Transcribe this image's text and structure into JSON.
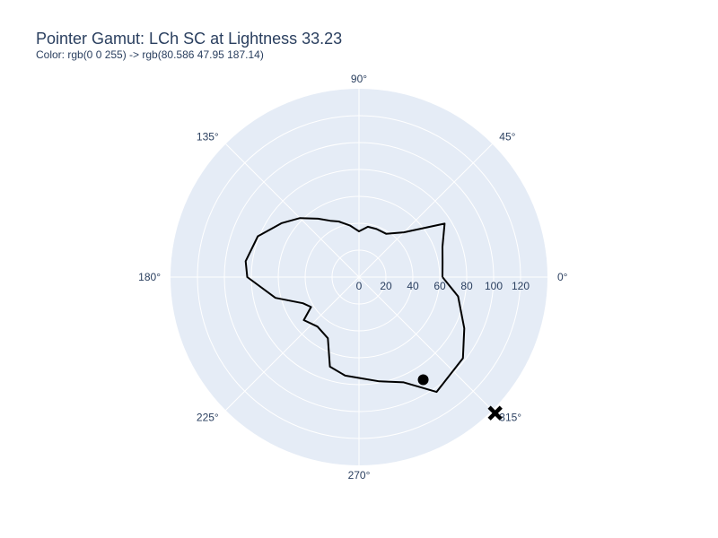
{
  "colors": {
    "polar_background": "#e5ecf6",
    "grid": "#ffffff",
    "text": "#2a3f5f",
    "trace": "#000000"
  },
  "chart_data": {
    "type": "scatter",
    "subtype": "polar",
    "title": "Pointer Gamut: LCh SC at Lightness 33.23",
    "subtitle": "Color: rgb(0 0 255) -> rgb(80.586 47.95 187.14)",
    "radial_axis": {
      "range": [
        0,
        140
      ],
      "ticks": [
        0,
        20,
        40,
        60,
        80,
        100,
        120
      ],
      "tick_angle_deg": 0
    },
    "angular_axis": {
      "ticks_deg": [
        0,
        45,
        90,
        135,
        180,
        225,
        270,
        315
      ],
      "tick_labels": [
        "0°",
        "45°",
        "90°",
        "135°",
        "180°",
        "225°",
        "270°",
        "315°"
      ]
    },
    "grid": true,
    "series": [
      {
        "mode": "lines",
        "closed": true,
        "points": [
          {
            "theta": 0,
            "r": 62
          },
          {
            "theta": 10,
            "r": 63
          },
          {
            "theta": 20,
            "r": 66
          },
          {
            "theta": 32,
            "r": 75
          },
          {
            "theta": 45,
            "r": 47
          },
          {
            "theta": 58,
            "r": 38
          },
          {
            "theta": 70,
            "r": 38
          },
          {
            "theta": 80,
            "r": 38
          },
          {
            "theta": 90,
            "r": 34
          },
          {
            "theta": 100,
            "r": 39
          },
          {
            "theta": 110,
            "r": 44
          },
          {
            "theta": 117,
            "r": 47
          },
          {
            "theta": 125,
            "r": 53
          },
          {
            "theta": 135,
            "r": 62
          },
          {
            "theta": 145,
            "r": 70
          },
          {
            "theta": 158,
            "r": 81
          },
          {
            "theta": 172,
            "r": 85
          },
          {
            "theta": 180,
            "r": 83
          },
          {
            "theta": 194,
            "r": 64
          },
          {
            "theta": 205,
            "r": 46
          },
          {
            "theta": 212,
            "r": 42
          },
          {
            "theta": 218,
            "r": 52
          },
          {
            "theta": 230,
            "r": 48
          },
          {
            "theta": 243,
            "r": 51
          },
          {
            "theta": 252,
            "r": 70
          },
          {
            "theta": 262,
            "r": 74
          },
          {
            "theta": 270,
            "r": 75
          },
          {
            "theta": 281,
            "r": 79
          },
          {
            "theta": 293,
            "r": 85
          },
          {
            "theta": 304,
            "r": 103
          },
          {
            "theta": 322,
            "r": 98
          },
          {
            "theta": 334,
            "r": 87
          },
          {
            "theta": 349,
            "r": 75
          },
          {
            "theta": 360,
            "r": 62
          }
        ]
      },
      {
        "mode": "markers",
        "marker": "circle",
        "points": [
          {
            "theta": 302,
            "r": 90
          }
        ]
      },
      {
        "mode": "markers",
        "marker": "x",
        "points": [
          {
            "theta": 315,
            "r": 143
          }
        ]
      }
    ]
  }
}
